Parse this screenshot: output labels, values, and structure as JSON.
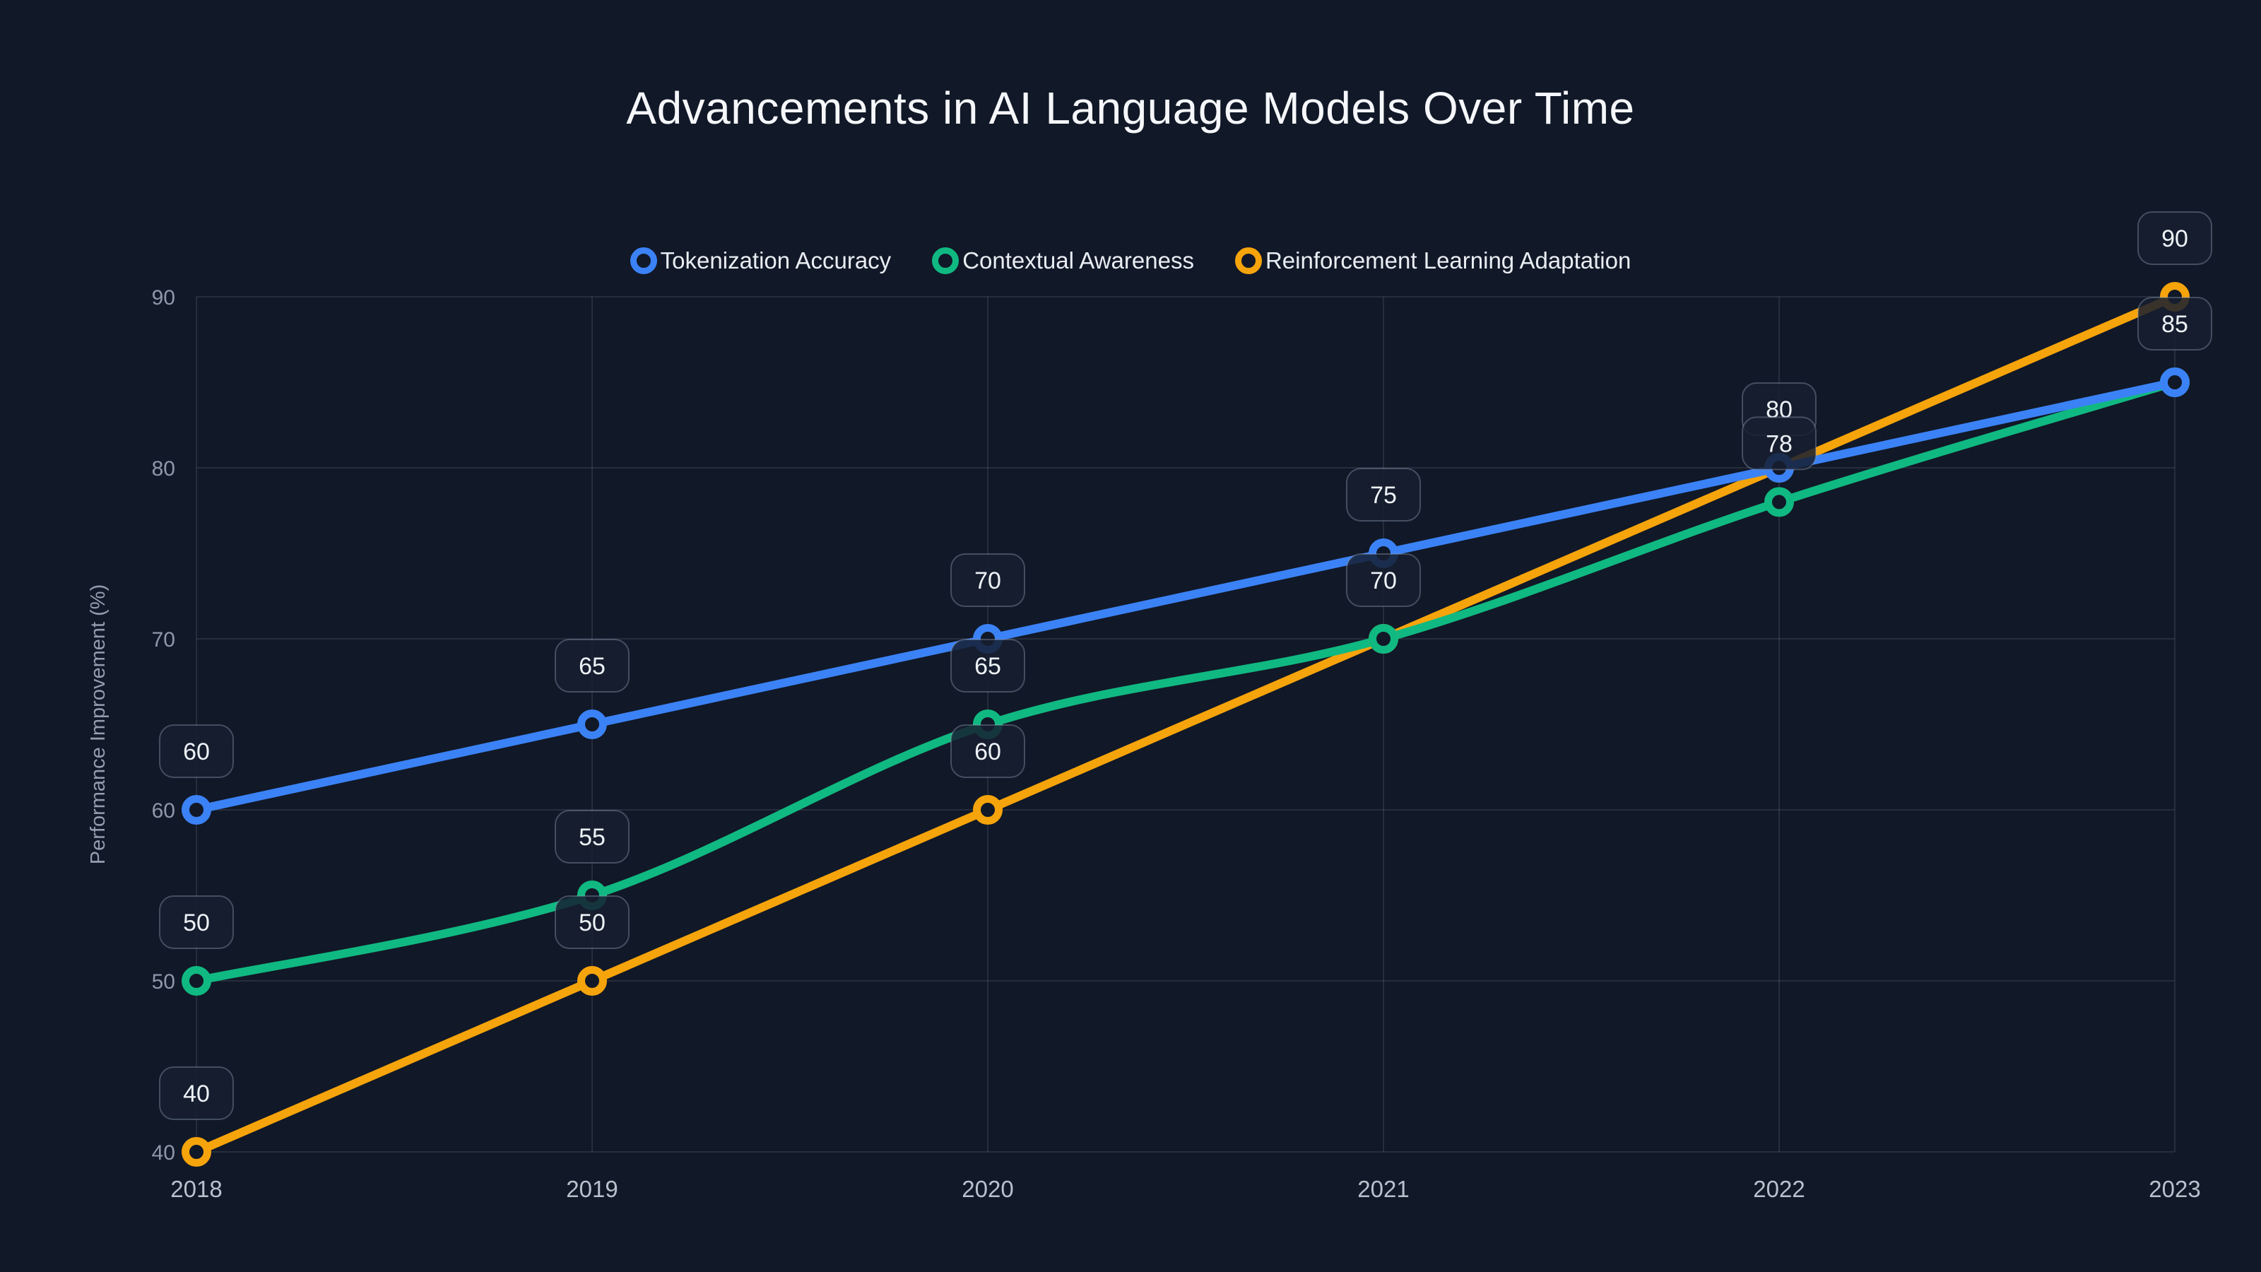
{
  "title": "Advancements in AI Language Models Over Time",
  "legend": [
    {
      "label": "Tokenization Accuracy",
      "color": "#3b82f6"
    },
    {
      "label": "Contextual Awareness",
      "color": "#10b981"
    },
    {
      "label": "Reinforcement Learning Adaptation",
      "color": "#f6a40b"
    }
  ],
  "chart_data": {
    "type": "line",
    "x": [
      2018,
      2019,
      2020,
      2021,
      2022,
      2023
    ],
    "series": [
      {
        "name": "Tokenization Accuracy",
        "color": "#3b82f6",
        "values": [
          60,
          65,
          70,
          75,
          80,
          85
        ]
      },
      {
        "name": "Contextual Awareness",
        "color": "#10b981",
        "values": [
          50,
          55,
          65,
          70,
          78,
          85
        ]
      },
      {
        "name": "Reinforcement Learning Adaptation",
        "color": "#f6a40b",
        "values": [
          40,
          50,
          60,
          70,
          80,
          90
        ]
      }
    ],
    "title": "Advancements in AI Language Models Over Time",
    "xlabel": "",
    "ylabel": "Performance Improvement (%)",
    "ylim": [
      40,
      90
    ],
    "yticks": [
      40,
      50,
      60,
      70,
      80,
      90
    ],
    "xticks": [
      "2018",
      "2019",
      "2020",
      "2021",
      "2022",
      "2023"
    ],
    "grid": true,
    "legend_position": "top",
    "curve": "smooth",
    "point_labels_per_year": [
      [
        60,
        50,
        40
      ],
      [
        65,
        55,
        50
      ],
      [
        70,
        65,
        60
      ],
      [
        75,
        70
      ],
      [
        80,
        78
      ],
      [
        90,
        85
      ]
    ]
  },
  "colors": {
    "background": "#111827",
    "gridline": "rgba(148,163,184,0.16)",
    "y_tick_text": "#8e98ab",
    "x_tick_text": "#b9c1cd",
    "axis_title_text": "#939dae",
    "label_box_fill": "rgba(22,30,48,0.85)",
    "label_box_border": "rgba(148,163,184,0.38)",
    "label_box_text": "#eef2f7",
    "title_text": "#f5f7fa",
    "legend_text": "#e9edf3"
  }
}
